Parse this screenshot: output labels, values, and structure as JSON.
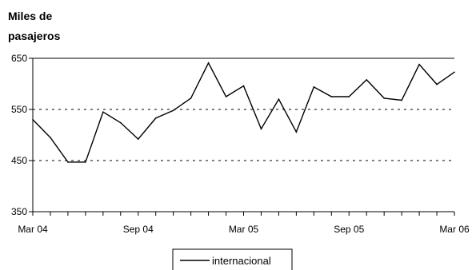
{
  "chart_data": {
    "type": "line",
    "title": "",
    "ylabel_lines": [
      "Miles de",
      "pasajeros"
    ],
    "xlabel": "",
    "ylim": [
      350,
      650
    ],
    "yticks": [
      350,
      450,
      550,
      650
    ],
    "gridlines_dashed": [
      450,
      550
    ],
    "x": [
      "Mar 04",
      "Apr 04",
      "May 04",
      "Jun 04",
      "Jul 04",
      "Aug 04",
      "Sep 04",
      "Oct 04",
      "Nov 04",
      "Dec 04",
      "Jan 05",
      "Feb 05",
      "Mar 05",
      "Apr 05",
      "May 05",
      "Jun 05",
      "Jul 05",
      "Aug 05",
      "Sep 05",
      "Oct 05",
      "Nov 05",
      "Dec 05",
      "Jan 06",
      "Feb 06",
      "Mar 06"
    ],
    "x_tick_labels": [
      {
        "index": 0,
        "label": "Mar 04"
      },
      {
        "index": 6,
        "label": "Sep 04"
      },
      {
        "index": 12,
        "label": "Mar 05"
      },
      {
        "index": 18,
        "label": "Sep 05"
      },
      {
        "index": 24,
        "label": "Mar 06"
      }
    ],
    "series": [
      {
        "name": "internacional",
        "color": "#000000",
        "values": [
          530,
          495,
          447,
          447,
          545,
          524,
          492,
          533,
          548,
          572,
          641,
          575,
          596,
          512,
          570,
          506,
          594,
          575,
          575,
          608,
          572,
          568,
          638,
          599,
          623
        ]
      }
    ],
    "legend_position": "bottom-center"
  }
}
